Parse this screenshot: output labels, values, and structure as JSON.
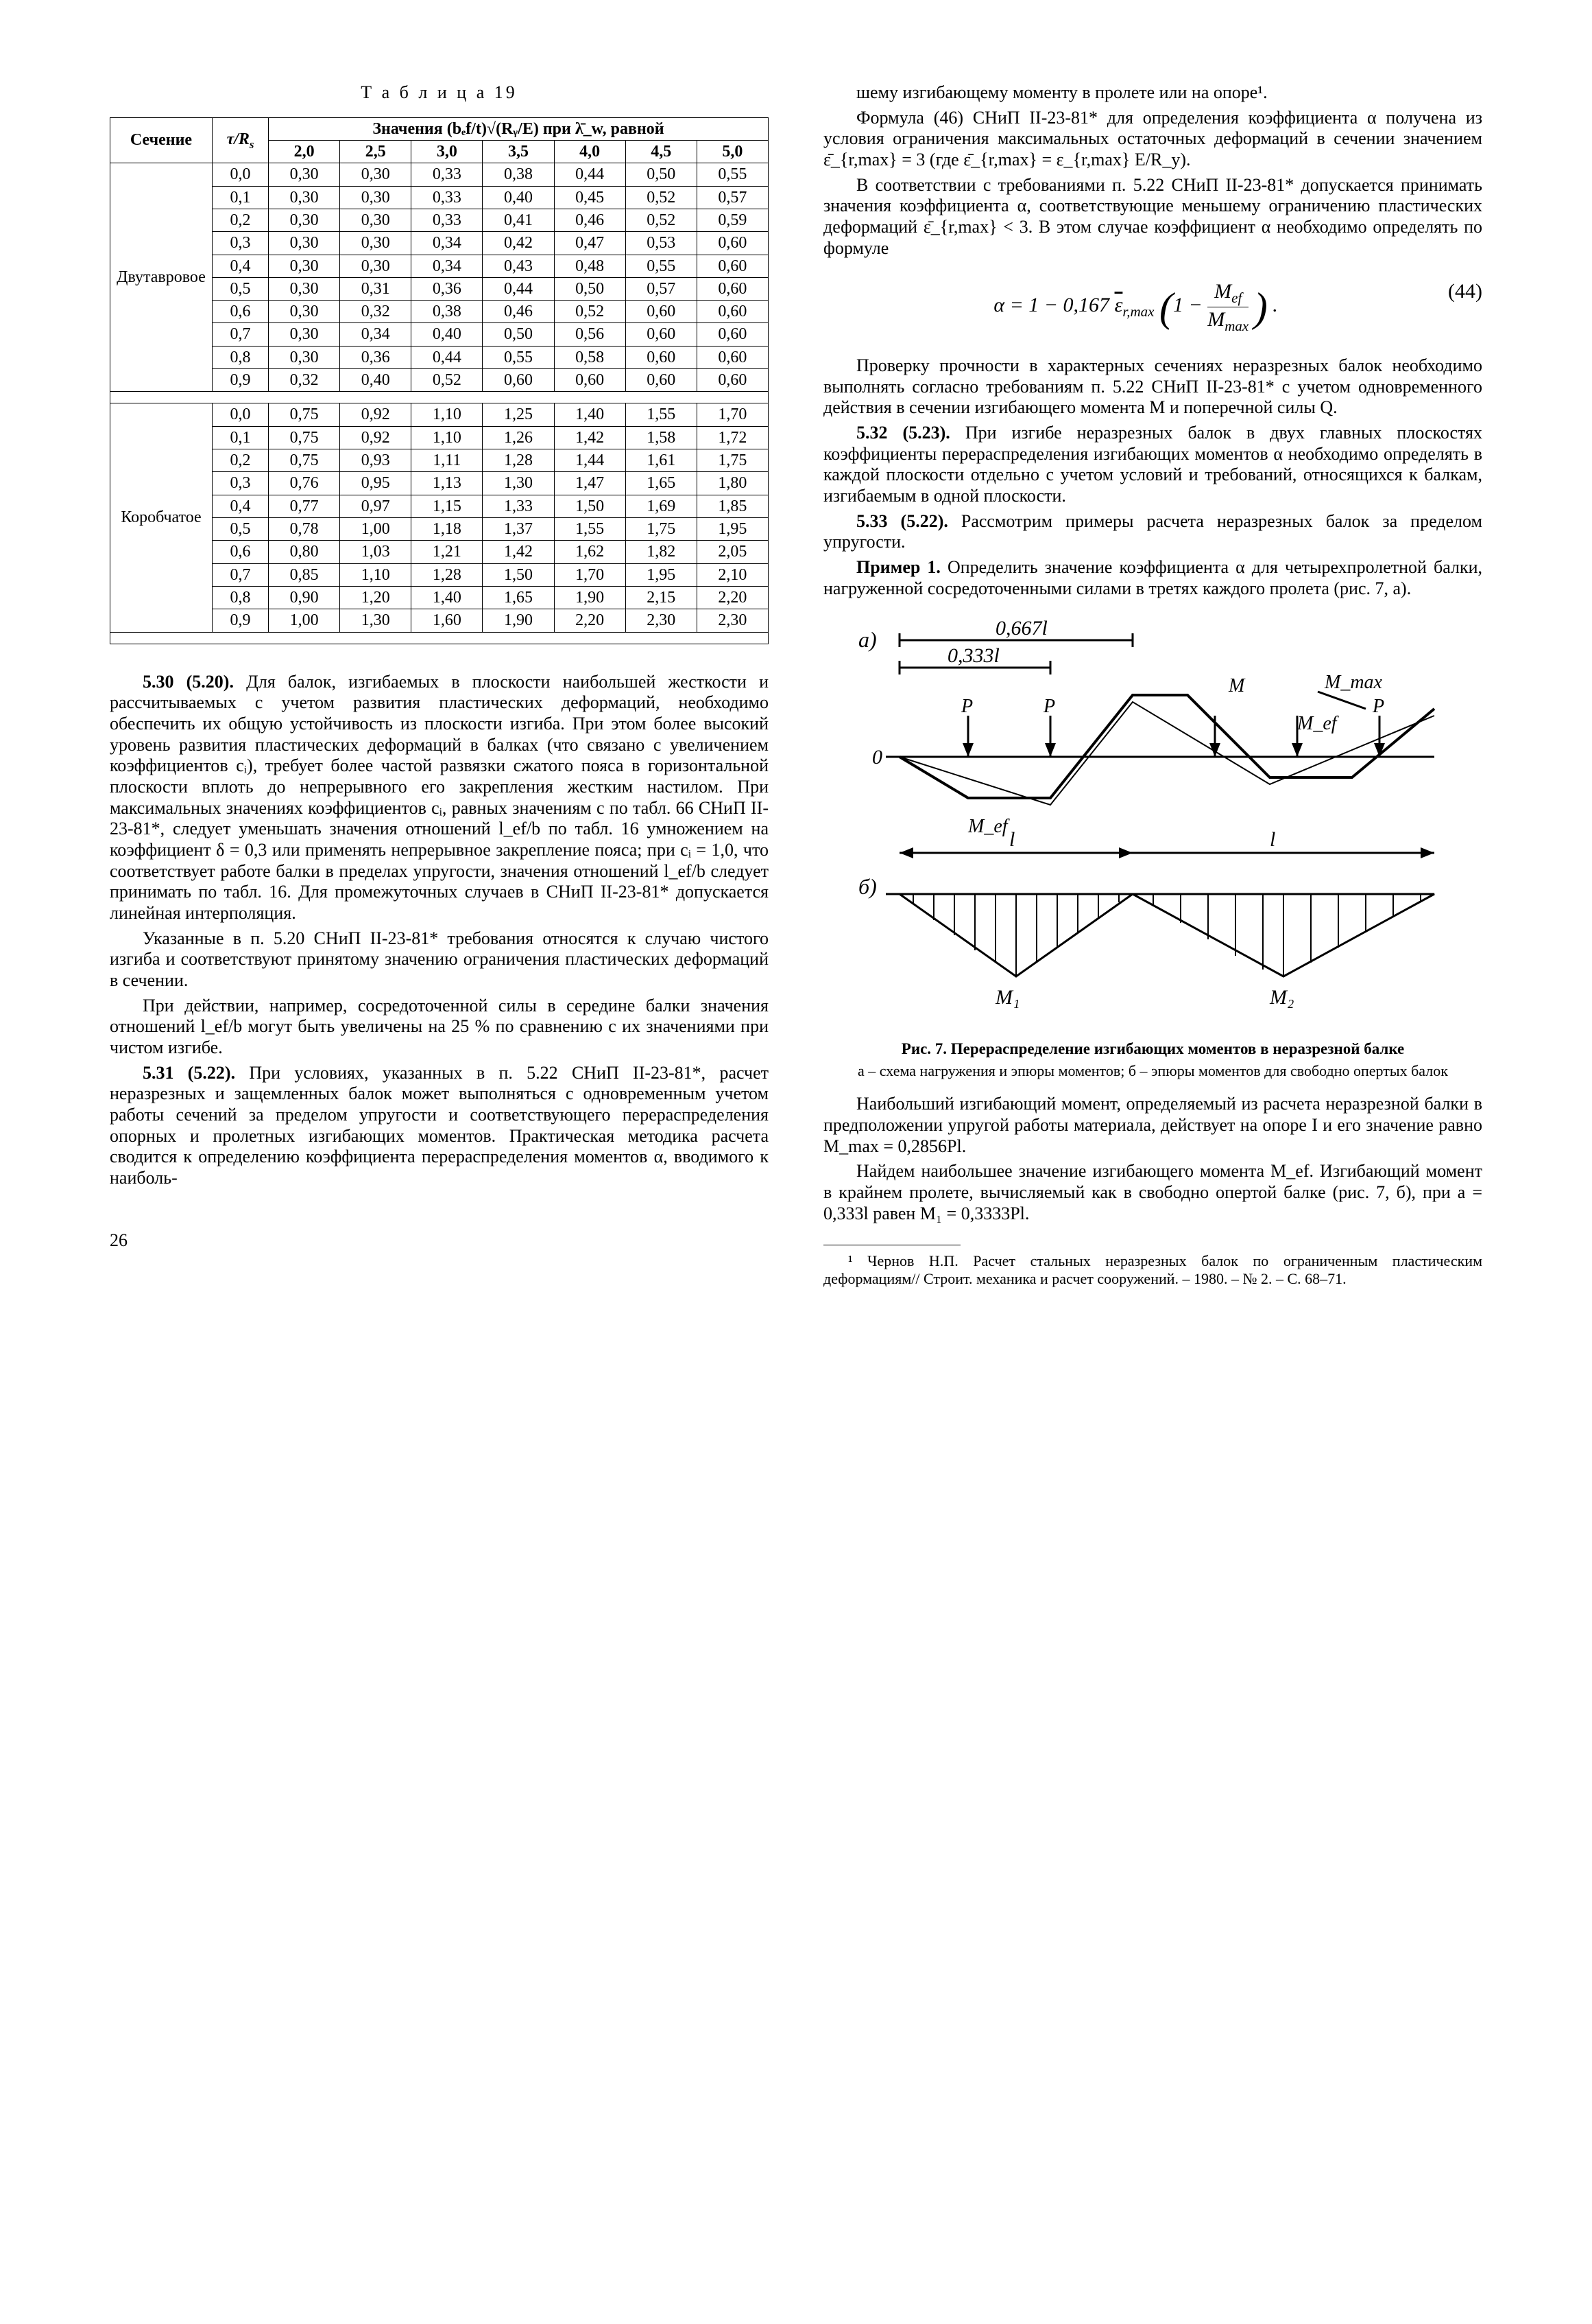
{
  "table": {
    "title": "Т а б л и ц а 19",
    "header": {
      "section": "Сечение",
      "tau": "τ/Rₛ",
      "values_title": "Значения (bₑf/t)√(Rᵧ/E) при λ̄_w, равной",
      "lambdas": [
        "2,0",
        "2,5",
        "3,0",
        "3,5",
        "4,0",
        "4,5",
        "5,0"
      ]
    },
    "sections": [
      {
        "name": "Двутавровое",
        "rows": [
          [
            "0,0",
            "0,30",
            "0,30",
            "0,33",
            "0,38",
            "0,44",
            "0,50",
            "0,55"
          ],
          [
            "0,1",
            "0,30",
            "0,30",
            "0,33",
            "0,40",
            "0,45",
            "0,52",
            "0,57"
          ],
          [
            "0,2",
            "0,30",
            "0,30",
            "0,33",
            "0,41",
            "0,46",
            "0,52",
            "0,59"
          ],
          [
            "0,3",
            "0,30",
            "0,30",
            "0,34",
            "0,42",
            "0,47",
            "0,53",
            "0,60"
          ],
          [
            "0,4",
            "0,30",
            "0,30",
            "0,34",
            "0,43",
            "0,48",
            "0,55",
            "0,60"
          ],
          [
            "0,5",
            "0,30",
            "0,31",
            "0,36",
            "0,44",
            "0,50",
            "0,57",
            "0,60"
          ],
          [
            "0,6",
            "0,30",
            "0,32",
            "0,38",
            "0,46",
            "0,52",
            "0,60",
            "0,60"
          ],
          [
            "0,7",
            "0,30",
            "0,34",
            "0,40",
            "0,50",
            "0,56",
            "0,60",
            "0,60"
          ],
          [
            "0,8",
            "0,30",
            "0,36",
            "0,44",
            "0,55",
            "0,58",
            "0,60",
            "0,60"
          ],
          [
            "0,9",
            "0,32",
            "0,40",
            "0,52",
            "0,60",
            "0,60",
            "0,60",
            "0,60"
          ]
        ]
      },
      {
        "name": "Коробчатое",
        "rows": [
          [
            "0,0",
            "0,75",
            "0,92",
            "1,10",
            "1,25",
            "1,40",
            "1,55",
            "1,70"
          ],
          [
            "0,1",
            "0,75",
            "0,92",
            "1,10",
            "1,26",
            "1,42",
            "1,58",
            "1,72"
          ],
          [
            "0,2",
            "0,75",
            "0,93",
            "1,11",
            "1,28",
            "1,44",
            "1,61",
            "1,75"
          ],
          [
            "0,3",
            "0,76",
            "0,95",
            "1,13",
            "1,30",
            "1,47",
            "1,65",
            "1,80"
          ],
          [
            "0,4",
            "0,77",
            "0,97",
            "1,15",
            "1,33",
            "1,50",
            "1,69",
            "1,85"
          ],
          [
            "0,5",
            "0,78",
            "1,00",
            "1,18",
            "1,37",
            "1,55",
            "1,75",
            "1,95"
          ],
          [
            "0,6",
            "0,80",
            "1,03",
            "1,21",
            "1,42",
            "1,62",
            "1,82",
            "2,05"
          ],
          [
            "0,7",
            "0,85",
            "1,10",
            "1,28",
            "1,50",
            "1,70",
            "1,95",
            "2,10"
          ],
          [
            "0,8",
            "0,90",
            "1,20",
            "1,40",
            "1,65",
            "1,90",
            "2,15",
            "2,20"
          ],
          [
            "0,9",
            "1,00",
            "1,30",
            "1,60",
            "1,90",
            "2,20",
            "2,30",
            "2,30"
          ]
        ]
      }
    ]
  },
  "left_paras": [
    {
      "b": "5.30 (5.20).",
      "t": "Для балок, изгибаемых в плоскости наибольшей жесткости и рассчитываемых с учетом развития пластических деформаций, необходимо обеспечить их общую устойчивость из плоскости изгиба. При этом более высокий уровень развития пластических деформаций в балках (что связано с увеличением коэффициентов cᵢ), требует более частой развязки сжатого пояса в горизонтальной плоскости вплоть до непрерывного его закрепления жестким настилом. При максимальных значениях коэффициентов cᵢ, равных значениям c по табл. 66 СНиП II-23-81*, следует уменьшать значения отношений l_ef/b по табл. 16 умножением на коэффициент δ = 0,3 или применять непрерывное закрепление пояса; при cᵢ = 1,0, что соответствует работе балки в пределах упругости, значения отношений l_ef/b следует принимать по табл. 16. Для промежуточных случаев в СНиП II-23-81* допускается линейная интерполяция."
    },
    {
      "b": "",
      "t": "Указанные в п. 5.20 СНиП II-23-81* требования относятся к случаю чистого изгиба и соответствуют принятому значению ограничения пластических деформаций в сечении."
    },
    {
      "b": "",
      "t": "При действии, например, сосредоточенной силы в середине балки значения отношений l_ef/b могут быть увеличены на 25 % по сравнению с их значениями при чистом изгибе."
    },
    {
      "b": "5.31 (5.22).",
      "t": "При условиях, указанных в п. 5.22 СНиП II-23-81*, расчет неразрезных и защемленных балок может выполняться с одновременным учетом работы сечений за пределом упругости и соответствующего перераспределения опорных и пролетных изгибающих моментов. Практическая методика расчета сводится к определению коэффициента перераспределения моментов α, вводимого к наиболь-"
    }
  ],
  "right_paras_top": [
    {
      "b": "",
      "t": "шему изгибающему моменту в пролете или на опоре¹."
    },
    {
      "b": "",
      "t": "Формула (46) СНиП II-23-81* для определения коэффициента α получена из условия ограничения максимальных остаточных деформаций в сечении значением ε̄_{r,max} = 3 (где ε̄_{r,max} = ε_{r,max} E/R_y)."
    },
    {
      "b": "",
      "t": "В соответствии с требованиями п. 5.22 СНиП II-23-81* допускается принимать значения коэффициента α, соответствующие меньшему ограничению пластических деформаций ε̄_{r,max} < 3. В этом случае коэффициент α необходимо определять по формуле"
    }
  ],
  "formula": {
    "text": "α = 1 − 0,167 ε̄_{r,max} ( 1 − M_ef / M_max ) .",
    "num": "(44)"
  },
  "right_paras_mid": [
    {
      "b": "",
      "t": "Проверку прочности в характерных сечениях неразрезных балок необходимо выполнять согласно требованиям п. 5.22 СНиП II-23-81* с учетом одновременного действия в сечении изгибающего момента M и поперечной силы Q."
    },
    {
      "b": "5.32 (5.23).",
      "t": "При изгибе неразрезных балок в двух главных плоскостях коэффициенты перераспределения изгибающих моментов α необходимо определять в каждой плоскости отдельно с учетом условий и требований, относящихся к балкам, изгибаемым в одной плоскости."
    },
    {
      "b": "5.33 (5.22).",
      "t": "Рассмотрим примеры расчета неразрезных балок за пределом упругости."
    },
    {
      "b": "Пример 1.",
      "t": "Определить значение коэффициента α для четырехпролетной балки, нагруженной сосредоточенными силами в третях каждого пролета (рис. 7, а)."
    }
  ],
  "figure": {
    "labels": {
      "a": "а)",
      "b": "б)",
      "t1": "0,667l",
      "t2": "0,333l",
      "Mmax": "M_max",
      "Mef": "M_ef",
      "P": "P",
      "l": "l",
      "M1": "M₁",
      "M2": "M₂",
      "zero": "0"
    },
    "caption": "Рис. 7. Перераспределение изгибающих моментов в неразрезной балке",
    "sub": "а – схема нагружения и эпюры моментов; б – эпюры моментов для свободно опертых балок",
    "colors": {
      "stroke": "#000",
      "bg": "#fff"
    }
  },
  "right_paras_bot": [
    {
      "b": "",
      "t": "Наибольший изгибающий момент, определяемый из расчета неразрезной балки в предположении упругой работы материала, действует на опоре I и его значение равно M_max = 0,2856Pl."
    },
    {
      "b": "",
      "t": "Найдем наибольшее значение изгибающего момента M_ef. Изгибающий момент в крайнем пролете, вычисляемый как в свободно опертой балке (рис. 7, б), при a = 0,333l равен M₁ = 0,3333Pl."
    }
  ],
  "footnote": "¹ Чернов Н.П. Расчет стальных неразрезных балок по ограниченным пластическим деформациям// Строит. механика и расчет сооружений. – 1980. – № 2. – С. 68–71.",
  "page": "26"
}
